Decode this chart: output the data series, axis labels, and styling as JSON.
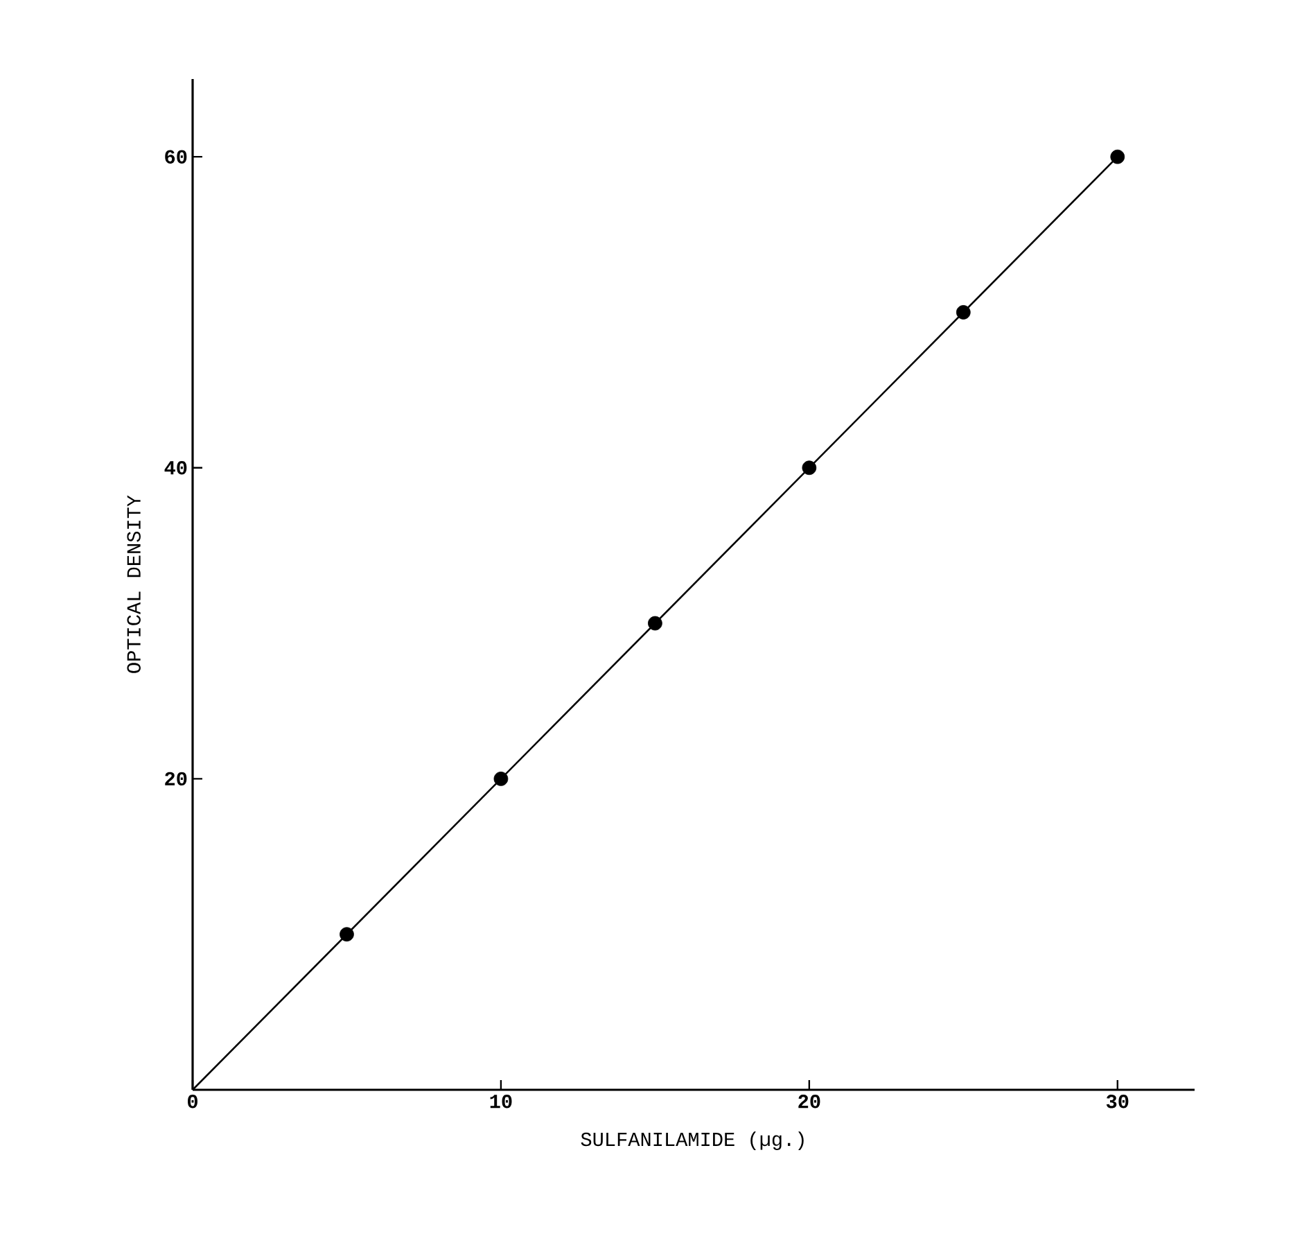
{
  "chart_data": {
    "type": "scatter",
    "xlabel": "SULFANILAMIDE (µg.)",
    "ylabel": "OPTICAL DENSITY",
    "xlim": [
      0,
      32.5
    ],
    "ylim": [
      0,
      65
    ],
    "xticks": [
      0,
      10,
      20,
      30
    ],
    "yticks": [
      20,
      40,
      60
    ],
    "grid": false,
    "series": [
      {
        "type": "line",
        "x": [
          0,
          30
        ],
        "values": [
          0,
          60
        ],
        "color": "#000000",
        "marker": "none",
        "line_style": "solid"
      },
      {
        "x": [
          5,
          10,
          15,
          20,
          25,
          30
        ],
        "values": [
          10,
          20,
          30,
          40,
          50,
          60
        ],
        "color": "#000000",
        "marker": "circle"
      }
    ]
  }
}
